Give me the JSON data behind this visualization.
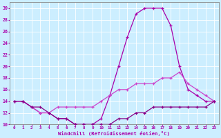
{
  "xlabel": "Windchill (Refroidissement éolien,°C)",
  "bg_color": "#cceeff",
  "grid_color": "#ffffff",
  "line_color1": "#aa00aa",
  "line_color2": "#cc44cc",
  "line_color3": "#880088",
  "xlim": [
    -0.5,
    23.5
  ],
  "ylim": [
    10,
    31
  ],
  "xticks": [
    0,
    1,
    2,
    3,
    4,
    5,
    6,
    7,
    8,
    9,
    10,
    11,
    12,
    13,
    14,
    15,
    16,
    17,
    18,
    19,
    20,
    21,
    22,
    23
  ],
  "yticks": [
    10,
    12,
    14,
    16,
    18,
    20,
    22,
    24,
    26,
    28,
    30
  ],
  "curve1_x": [
    0,
    1,
    2,
    3,
    4,
    5,
    6,
    7,
    8,
    9,
    10,
    11,
    12,
    13,
    14,
    15,
    16,
    17,
    18,
    19,
    20,
    21,
    22,
    23
  ],
  "curve1_y": [
    14,
    14,
    13,
    12,
    12,
    11,
    11,
    10,
    10,
    10,
    11,
    15,
    20,
    25,
    29,
    30,
    30,
    30,
    27,
    20,
    16,
    15,
    14,
    14
  ],
  "curve2_x": [
    0,
    1,
    2,
    3,
    4,
    5,
    6,
    7,
    8,
    9,
    10,
    11,
    12,
    13,
    14,
    15,
    16,
    17,
    18,
    19,
    20,
    21,
    22,
    23
  ],
  "curve2_y": [
    14,
    14,
    13,
    12,
    12,
    13,
    13,
    13,
    13,
    13,
    14,
    15,
    16,
    16,
    17,
    17,
    17,
    18,
    18,
    19,
    17,
    16,
    15,
    14
  ],
  "curve3_x": [
    0,
    1,
    2,
    3,
    4,
    5,
    6,
    7,
    8,
    9,
    10,
    11,
    12,
    13,
    14,
    15,
    16,
    17,
    18,
    19,
    20,
    21,
    22,
    23
  ],
  "curve3_y": [
    14,
    14,
    13,
    13,
    12,
    11,
    11,
    10,
    10,
    10,
    10,
    10,
    11,
    11,
    12,
    12,
    13,
    13,
    13,
    13,
    13,
    13,
    13,
    14
  ]
}
